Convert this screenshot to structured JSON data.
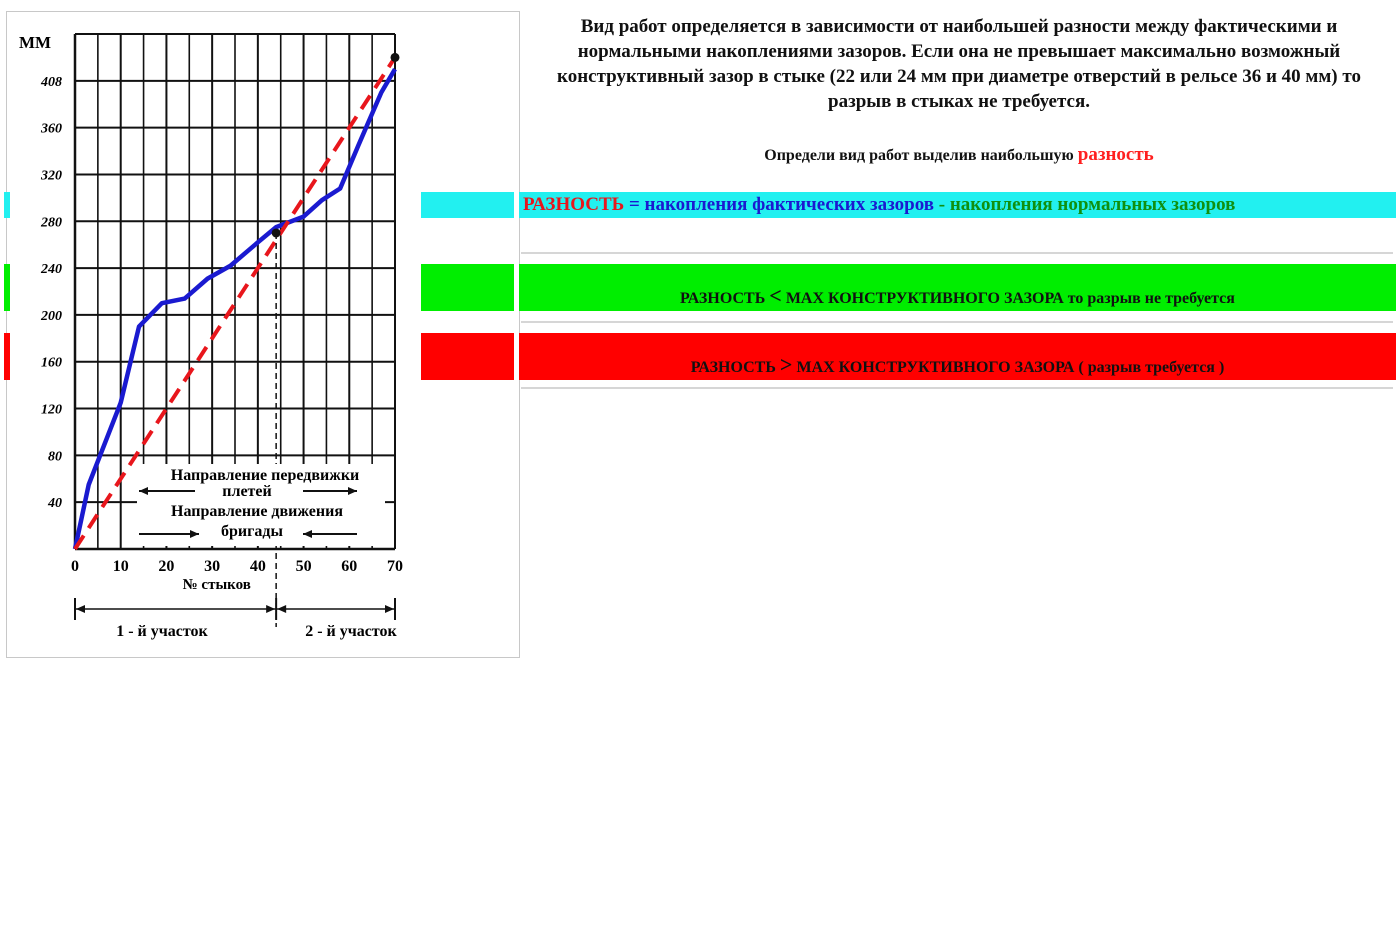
{
  "intro_text": "Вид работ определяется в зависимости от наибольшей разности между фактическими и нормальными накоплениями зазоров. Если она не превышает максимально возможный конструктивный зазор в стыке (22 или 24 мм при диаметре отверстий в рельсе 36 и 40 мм) то разрыв в стыках не требуется.",
  "prompt": {
    "text": "Определи вид работ выделив наибольшую",
    "highlight": "разность"
  },
  "bars": {
    "difference": {
      "word": "РАЗНОСТЬ",
      "equals": " = ",
      "actual": "накопления фактических зазоров",
      "minus": " - ",
      "normal": "накопления нормальных зазоров"
    },
    "less": {
      "word": "РАЗНОСТЬ",
      "op": "<",
      "text": "MAX КОНСТРУКТИВНОГО ЗАЗОРА то разрыв не требуется"
    },
    "more": {
      "word": "РАЗНОСТЬ",
      "op": ">",
      "text": "MAX КОНСТРУКТИВНОГО ЗАЗОРА ( разрыв требуется )"
    }
  },
  "colors": {
    "cyan": "#22f0f0",
    "green": "#00ee00",
    "red": "#ff0000",
    "actual_line": "#1a1ad0",
    "normal_line": "#e8161c"
  },
  "chart_data": {
    "type": "line",
    "ylabel": "ММ",
    "xlabel": "№ стыков",
    "xlim": [
      0,
      70
    ],
    "ylim": [
      0,
      440
    ],
    "x_ticks": [
      0,
      10,
      20,
      30,
      40,
      50,
      60,
      70
    ],
    "y_ticks": [
      40,
      80,
      120,
      160,
      200,
      240,
      280,
      320,
      360,
      408
    ],
    "grid": true,
    "series": [
      {
        "name": "накопления фактических зазоров",
        "color": "#1a1ad0",
        "style": "solid",
        "x": [
          0,
          3,
          7,
          10,
          14,
          19,
          24,
          29,
          34,
          40,
          44,
          50,
          54,
          58,
          62,
          67,
          70
        ],
        "y": [
          0,
          55,
          95,
          125,
          190,
          210,
          214,
          231,
          242,
          262,
          275,
          284,
          298,
          308,
          345,
          390,
          410
        ]
      },
      {
        "name": "накопления нормальных зазоров",
        "color": "#e8161c",
        "style": "dashed",
        "x": [
          0,
          70
        ],
        "y": [
          0,
          420
        ]
      }
    ],
    "markers": [
      {
        "x": 44,
        "y": 270
      },
      {
        "x": 70,
        "y": 420
      }
    ],
    "dashed_guide_x": 44,
    "annotations": {
      "direction_1_title": "Направление передвижки",
      "direction_1_sub": "плетей",
      "direction_2_title": "Направление движения",
      "direction_2_sub": "бригады",
      "section_1": "1 - й участок",
      "section_2": "2 - й участок"
    }
  }
}
